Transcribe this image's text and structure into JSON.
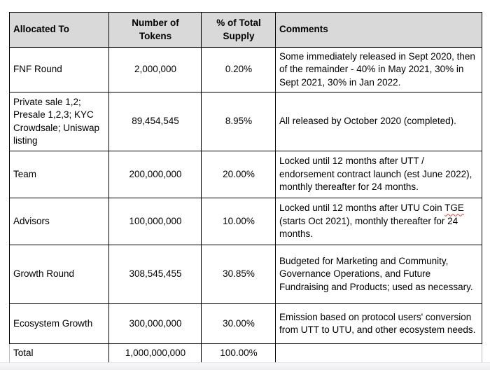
{
  "table": {
    "headers": [
      {
        "label": "Allocated To",
        "align": "left"
      },
      {
        "label": "Number of\nTokens",
        "align": "center"
      },
      {
        "label": "% of Total\nSupply",
        "align": "center"
      },
      {
        "label": "Comments",
        "align": "left"
      }
    ],
    "rows": [
      {
        "allocated_to": "FNF Round",
        "tokens": "2,000,000",
        "pct": "0.20%",
        "comment": "Some immediately released in Sept 2020, then of the remainder - 40% in May 2021, 30% in Sept 2021, 30% in Jan 2022."
      },
      {
        "allocated_to": "Private sale 1,2; Presale 1,2,3; KYC Crowdsale; Uniswap listing",
        "tokens": "89,454,545",
        "pct": "8.95%",
        "comment": "All released by October 2020 (completed)."
      },
      {
        "allocated_to": "Team",
        "tokens": "200,000,000",
        "pct": "20.00%",
        "comment": "Locked until 12 months after UTT / endorsement contract launch (est June 2022), monthly thereafter for 24 months."
      },
      {
        "allocated_to": "Advisors",
        "tokens": "100,000,000",
        "pct": "10.00%",
        "comment": "Locked until 12 months after UTU Coin TGE (starts Oct 2021), monthly thereafter for 24 months.",
        "spellcheck_word": "TGE"
      },
      {
        "allocated_to": "Growth Round",
        "tokens": "308,545,455",
        "pct": "30.85%",
        "comment": "Budgeted for Marketing and Community, Governance Operations, and Future Fundraising and Products; used as necessary."
      },
      {
        "allocated_to": "Ecosystem Growth",
        "tokens": "300,000,000",
        "pct": "30.00%",
        "comment": "Emission based on protocol users' conversion from UTT to UTU, and other ecosystem needs."
      },
      {
        "allocated_to": "Total",
        "tokens": "1,000,000,000",
        "pct": "100.00%",
        "comment": "",
        "is_total": true
      }
    ],
    "colors": {
      "header_background": "#d9d9d9",
      "border": "#000000",
      "faded_border": "#bcbcbc",
      "spellcheck_underline": "#e8442d"
    }
  }
}
